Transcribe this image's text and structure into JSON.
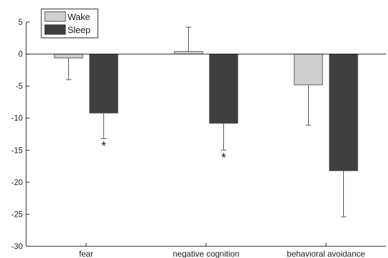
{
  "chart_data": {
    "type": "bar",
    "categories": [
      "fear",
      "negative cognition",
      "behavioral avoidance"
    ],
    "series": [
      {
        "name": "Wake",
        "color": "#cfcfcf",
        "values": [
          -0.6,
          0.4,
          -4.8
        ],
        "error": [
          3.4,
          3.8,
          6.3
        ],
        "significance": [
          "",
          "",
          ""
        ]
      },
      {
        "name": "Sleep",
        "color": "#3f3f3f",
        "values": [
          -9.2,
          -10.8,
          -18.2
        ],
        "error": [
          4.0,
          4.2,
          7.2
        ],
        "significance": [
          "*",
          "*",
          ""
        ]
      }
    ],
    "ylim": [
      -30,
      5
    ],
    "yticks": [
      5,
      0,
      -5,
      -10,
      -15,
      -20,
      -25,
      -30
    ],
    "title": "",
    "xlabel": "",
    "ylabel": "",
    "legend_position": "top-left",
    "grid": false
  }
}
